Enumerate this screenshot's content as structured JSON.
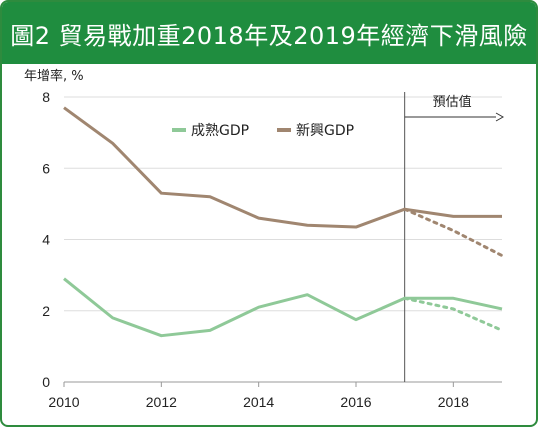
{
  "header": {
    "title": "圖2 貿易戰加重2018年及2019年經濟下滑風險"
  },
  "colors": {
    "title_bar": "#1f8d3f",
    "frame_border": "#2e8b3e",
    "advanced": "#8fc998",
    "emerging": "#a08670"
  },
  "chart_data": {
    "type": "line",
    "title": "",
    "ylabel": "年增率, %",
    "xlabel": "",
    "xlim": [
      2010,
      2019
    ],
    "ylim": [
      0,
      8
    ],
    "x_ticks": [
      "2010",
      "2012",
      "2014",
      "2016",
      "2018"
    ],
    "y_ticks": [
      "0",
      "2",
      "4",
      "6",
      "8"
    ],
    "grid": "horizontal",
    "legend_position": "top-center",
    "forecast_label": "預估值",
    "forecast_start": 2017,
    "x": [
      2010,
      2011,
      2012,
      2013,
      2014,
      2015,
      2016,
      2017,
      2018,
      2019
    ],
    "series": [
      {
        "name": "成熟GDP",
        "color": "#8fc998",
        "values": [
          2.9,
          1.8,
          1.3,
          1.45,
          2.1,
          2.45,
          1.75,
          2.35,
          2.35,
          2.05
        ]
      },
      {
        "name": "新興GDP",
        "color": "#a08670",
        "values": [
          7.7,
          6.7,
          5.3,
          5.2,
          4.6,
          4.4,
          4.35,
          4.85,
          4.65,
          4.65
        ]
      }
    ],
    "downside_series": [
      {
        "base_series": "成熟GDP",
        "color": "#8fc998",
        "x": [
          2017,
          2018,
          2019
        ],
        "values": [
          2.35,
          2.05,
          1.45
        ]
      },
      {
        "base_series": "新興GDP",
        "color": "#a08670",
        "x": [
          2017,
          2018,
          2019
        ],
        "values": [
          4.85,
          4.25,
          3.55
        ]
      }
    ]
  }
}
